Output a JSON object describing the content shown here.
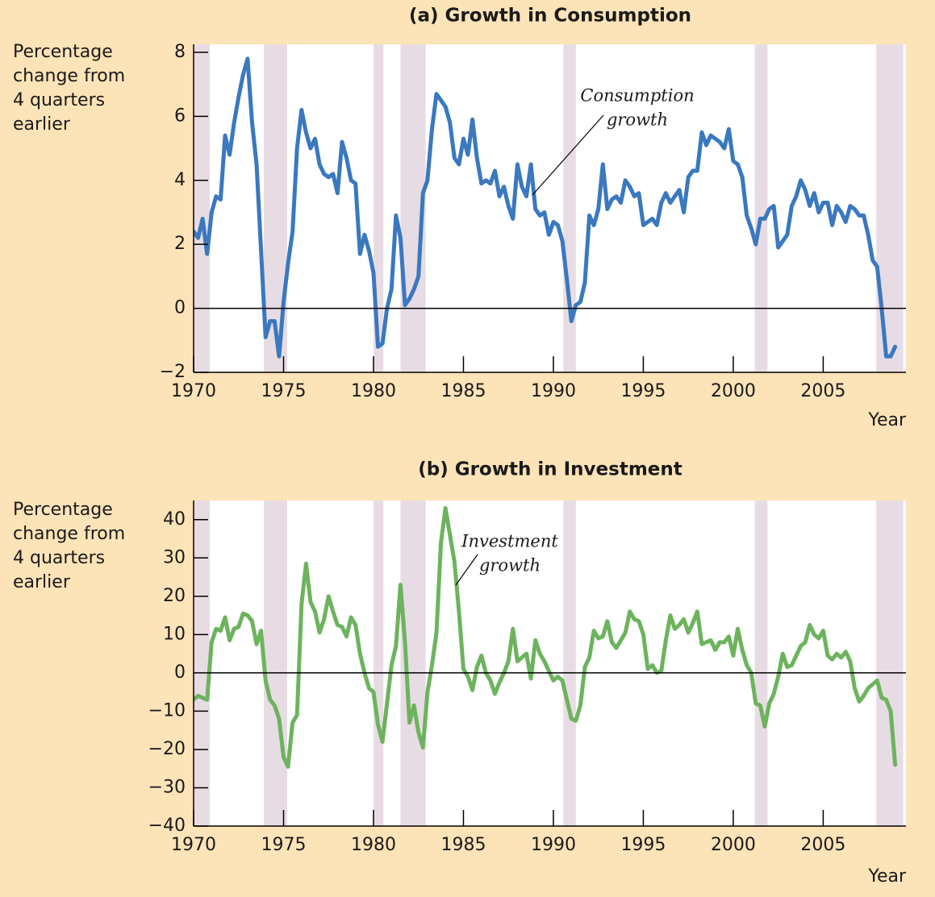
{
  "chart_data": [
    {
      "type": "line",
      "title": "(a) Growth in Consumption",
      "ylabel_lines": [
        "Percentage",
        "change from",
        "4 quarters",
        "earlier"
      ],
      "xlabel": "Year",
      "annotation": [
        "Consumption",
        "growth"
      ],
      "color": "#3a78c0",
      "xlim": [
        1970,
        2009.6
      ],
      "xticks": [
        1970,
        1975,
        1980,
        1985,
        1990,
        1995,
        2000,
        2005
      ],
      "ylim": [
        -2,
        8.25
      ],
      "yticks": [
        {
          "value": -2,
          "label": "−2"
        },
        0,
        2,
        4,
        6,
        8
      ],
      "recessions": [
        [
          1969.9,
          1970.9
        ],
        [
          1973.9,
          1975.2
        ],
        [
          1980.0,
          1980.55
        ],
        [
          1981.5,
          1982.9
        ],
        [
          1990.55,
          1991.25
        ],
        [
          2001.2,
          2001.9
        ],
        [
          2007.95,
          2009.45
        ]
      ],
      "x": [
        1970.0,
        1970.25,
        1970.5,
        1970.75,
        1971.0,
        1971.25,
        1971.5,
        1971.75,
        1972.0,
        1972.25,
        1972.5,
        1972.75,
        1973.0,
        1973.25,
        1973.5,
        1973.75,
        1974.0,
        1974.25,
        1974.5,
        1974.75,
        1975.0,
        1975.25,
        1975.5,
        1975.75,
        1976.0,
        1976.25,
        1976.5,
        1976.75,
        1977.0,
        1977.25,
        1977.5,
        1977.75,
        1978.0,
        1978.25,
        1978.5,
        1978.75,
        1979.0,
        1979.25,
        1979.5,
        1979.75,
        1980.0,
        1980.25,
        1980.5,
        1980.75,
        1981.0,
        1981.25,
        1981.5,
        1981.75,
        1982.0,
        1982.25,
        1982.5,
        1982.75,
        1983.0,
        1983.25,
        1983.5,
        1983.75,
        1984.0,
        1984.25,
        1984.5,
        1984.75,
        1985.0,
        1985.25,
        1985.5,
        1985.75,
        1986.0,
        1986.25,
        1986.5,
        1986.75,
        1987.0,
        1987.25,
        1987.5,
        1987.75,
        1988.0,
        1988.25,
        1988.5,
        1988.75,
        1989.0,
        1989.25,
        1989.5,
        1989.75,
        1990.0,
        1990.25,
        1990.5,
        1990.75,
        1991.0,
        1991.25,
        1991.5,
        1991.75,
        1992.0,
        1992.25,
        1992.5,
        1992.75,
        1993.0,
        1993.25,
        1993.5,
        1993.75,
        1994.0,
        1994.25,
        1994.5,
        1994.75,
        1995.0,
        1995.25,
        1995.5,
        1995.75,
        1996.0,
        1996.25,
        1996.5,
        1996.75,
        1997.0,
        1997.25,
        1997.5,
        1997.75,
        1998.0,
        1998.25,
        1998.5,
        1998.75,
        1999.0,
        1999.25,
        1999.5,
        1999.75,
        2000.0,
        2000.25,
        2000.5,
        2000.75,
        2001.0,
        2001.25,
        2001.5,
        2001.75,
        2002.0,
        2002.25,
        2002.5,
        2002.75,
        2003.0,
        2003.25,
        2003.5,
        2003.75,
        2004.0,
        2004.25,
        2004.5,
        2004.75,
        2005.0,
        2005.25,
        2005.5,
        2005.75,
        2006.0,
        2006.25,
        2006.5,
        2006.75,
        2007.0,
        2007.25,
        2007.5,
        2007.75,
        2008.0,
        2008.25,
        2008.5,
        2008.75,
        2009.0
      ],
      "values": [
        2.4,
        2.2,
        2.8,
        1.7,
        3.0,
        3.5,
        3.4,
        5.4,
        4.8,
        5.8,
        6.6,
        7.3,
        7.8,
        5.8,
        4.5,
        1.8,
        -0.9,
        -0.4,
        -0.4,
        -1.5,
        0.2,
        1.4,
        2.4,
        5.0,
        6.2,
        5.5,
        5.0,
        5.3,
        4.5,
        4.2,
        4.1,
        4.2,
        3.6,
        5.2,
        4.7,
        4.0,
        3.9,
        1.7,
        2.3,
        1.8,
        1.1,
        -1.2,
        -1.1,
        0.0,
        0.6,
        2.9,
        2.2,
        0.1,
        0.3,
        0.6,
        1.0,
        3.6,
        4.0,
        5.6,
        6.7,
        6.5,
        6.3,
        5.8,
        4.7,
        4.5,
        5.3,
        4.8,
        5.9,
        4.7,
        3.9,
        4.0,
        3.9,
        4.3,
        3.5,
        3.8,
        3.2,
        2.8,
        4.5,
        3.8,
        3.5,
        4.5,
        3.1,
        2.9,
        3.0,
        2.3,
        2.7,
        2.6,
        2.1,
        0.9,
        -0.4,
        0.1,
        0.2,
        0.8,
        2.9,
        2.6,
        3.1,
        4.5,
        3.1,
        3.4,
        3.5,
        3.3,
        4.0,
        3.8,
        3.5,
        3.6,
        2.6,
        2.7,
        2.8,
        2.6,
        3.3,
        3.6,
        3.3,
        3.5,
        3.7,
        3.0,
        4.1,
        4.3,
        4.3,
        5.5,
        5.1,
        5.4,
        5.3,
        5.2,
        5.0,
        5.6,
        4.6,
        4.5,
        4.1,
        2.9,
        2.5,
        2.0,
        2.8,
        2.8,
        3.1,
        3.2,
        1.9,
        2.1,
        2.3,
        3.2,
        3.5,
        4.0,
        3.7,
        3.2,
        3.6,
        3.0,
        3.3,
        3.3,
        2.6,
        3.2,
        3.0,
        2.7,
        3.2,
        3.1,
        2.9,
        2.9,
        2.3,
        1.5,
        1.3,
        0.0,
        -1.5,
        -1.5,
        -1.2
      ]
    },
    {
      "type": "line",
      "title": "(b) Growth in Investment",
      "ylabel_lines": [
        "Percentage",
        "change from",
        "4 quarters",
        "earlier"
      ],
      "xlabel": "Year",
      "annotation": [
        "Investment",
        "growth"
      ],
      "color": "#6db35e",
      "xlim": [
        1970,
        2009.6
      ],
      "xticks": [
        1970,
        1975,
        1980,
        1985,
        1990,
        1995,
        2000,
        2005
      ],
      "ylim": [
        -40,
        45
      ],
      "yticks": [
        {
          "value": -40,
          "label": "−40"
        },
        {
          "value": -30,
          "label": "−30"
        },
        {
          "value": -20,
          "label": "−20"
        },
        {
          "value": -10,
          "label": "−10"
        },
        0,
        10,
        20,
        30,
        40
      ],
      "recessions": [
        [
          1969.9,
          1970.9
        ],
        [
          1973.9,
          1975.2
        ],
        [
          1980.0,
          1980.55
        ],
        [
          1981.5,
          1982.9
        ],
        [
          1990.55,
          1991.25
        ],
        [
          2001.2,
          2001.9
        ],
        [
          2007.95,
          2009.45
        ]
      ],
      "x": [
        1970.0,
        1970.25,
        1970.5,
        1970.75,
        1971.0,
        1971.25,
        1971.5,
        1971.75,
        1972.0,
        1972.25,
        1972.5,
        1972.75,
        1973.0,
        1973.25,
        1973.5,
        1973.75,
        1974.0,
        1974.25,
        1974.5,
        1974.75,
        1975.0,
        1975.25,
        1975.5,
        1975.75,
        1976.0,
        1976.25,
        1976.5,
        1976.75,
        1977.0,
        1977.25,
        1977.5,
        1977.75,
        1978.0,
        1978.25,
        1978.5,
        1978.75,
        1979.0,
        1979.25,
        1979.5,
        1979.75,
        1980.0,
        1980.25,
        1980.5,
        1980.75,
        1981.0,
        1981.25,
        1981.5,
        1981.75,
        1982.0,
        1982.25,
        1982.5,
        1982.75,
        1983.0,
        1983.25,
        1983.5,
        1983.75,
        1984.0,
        1984.25,
        1984.5,
        1984.75,
        1985.0,
        1985.25,
        1985.5,
        1985.75,
        1986.0,
        1986.25,
        1986.5,
        1986.75,
        1987.0,
        1987.25,
        1987.5,
        1987.75,
        1988.0,
        1988.25,
        1988.5,
        1988.75,
        1989.0,
        1989.25,
        1989.5,
        1989.75,
        1990.0,
        1990.25,
        1990.5,
        1990.75,
        1991.0,
        1991.25,
        1991.5,
        1991.75,
        1992.0,
        1992.25,
        1992.5,
        1992.75,
        1993.0,
        1993.25,
        1993.5,
        1993.75,
        1994.0,
        1994.25,
        1994.5,
        1994.75,
        1995.0,
        1995.25,
        1995.5,
        1995.75,
        1996.0,
        1996.25,
        1996.5,
        1996.75,
        1997.0,
        1997.25,
        1997.5,
        1997.75,
        1998.0,
        1998.25,
        1998.5,
        1998.75,
        1999.0,
        1999.25,
        1999.5,
        1999.75,
        2000.0,
        2000.25,
        2000.5,
        2000.75,
        2001.0,
        2001.25,
        2001.5,
        2001.75,
        2002.0,
        2002.25,
        2002.5,
        2002.75,
        2003.0,
        2003.25,
        2003.5,
        2003.75,
        2004.0,
        2004.25,
        2004.5,
        2004.75,
        2005.0,
        2005.25,
        2005.5,
        2005.75,
        2006.0,
        2006.25,
        2006.5,
        2006.75,
        2007.0,
        2007.25,
        2007.5,
        2007.75,
        2008.0,
        2008.25,
        2008.5,
        2008.75,
        2009.0
      ],
      "values": [
        -7,
        -6,
        -6.5,
        -7,
        8,
        11.5,
        11,
        14.5,
        8.5,
        11.5,
        12,
        15.5,
        15,
        13.5,
        7.5,
        11,
        -2,
        -7,
        -8.5,
        -12,
        -22,
        -24.5,
        -13,
        -11,
        18,
        28.5,
        18.5,
        16,
        10.5,
        14,
        20,
        16,
        12.5,
        12,
        9.5,
        14.5,
        12.5,
        5,
        0,
        -4,
        -5,
        -13.5,
        -18,
        -8,
        2,
        7,
        23,
        8,
        -13,
        -8.5,
        -15.5,
        -19.5,
        -5,
        2,
        10.5,
        34,
        43,
        36,
        29,
        16,
        1,
        -1,
        -4.5,
        1.5,
        4.5,
        0,
        -2,
        -5.5,
        -2.5,
        0,
        3,
        11.5,
        3,
        4,
        5,
        -1.5,
        8.5,
        5,
        3,
        0.5,
        -2,
        -1,
        -2,
        -7,
        -12,
        -12.5,
        -8.5,
        1.5,
        4,
        11,
        9,
        9.5,
        13.5,
        8,
        6.5,
        8.5,
        10.5,
        16,
        14,
        13.5,
        10,
        1,
        2,
        0,
        0.5,
        8.5,
        15,
        11.5,
        12.5,
        14,
        10.5,
        13,
        16,
        7.5,
        8,
        8.5,
        6,
        8,
        8,
        9.5,
        4.5,
        11.5,
        6,
        2,
        0,
        -8,
        -8.5,
        -14,
        -8,
        -5.5,
        -1,
        5,
        1.5,
        2,
        4.5,
        7,
        8,
        12.5,
        10,
        9,
        11,
        4.5,
        3.5,
        5,
        4,
        5.5,
        3,
        -4,
        -7.5,
        -6,
        -4,
        -3,
        -2,
        -6.5,
        -7,
        -10,
        -24
      ]
    }
  ]
}
